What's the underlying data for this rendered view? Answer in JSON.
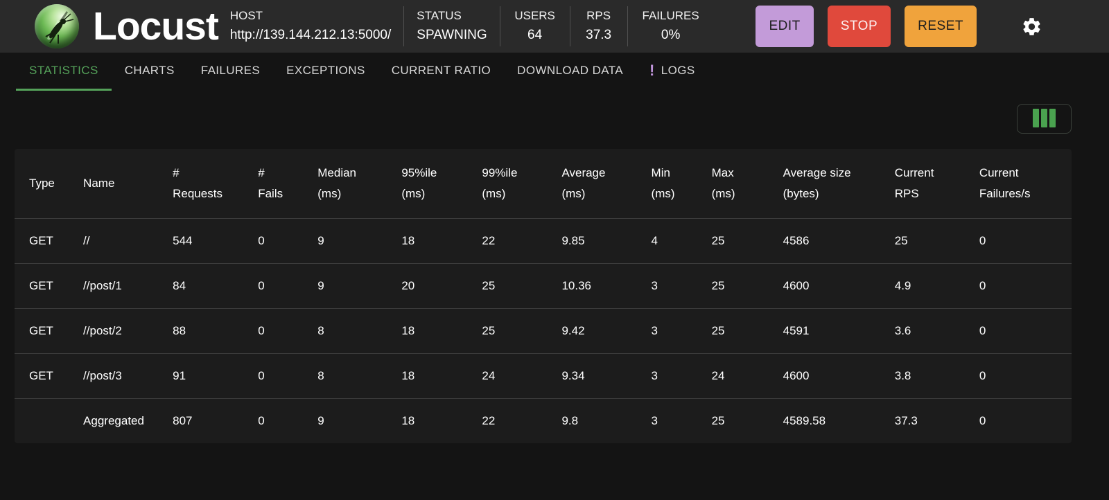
{
  "header": {
    "app_title": "Locust",
    "host": {
      "label": "HOST",
      "value": "http://139.144.212.13:5000/"
    },
    "stats": [
      {
        "label": "STATUS",
        "value": "SPAWNING"
      },
      {
        "label": "USERS",
        "value": "64"
      },
      {
        "label": "RPS",
        "value": "37.3"
      },
      {
        "label": "FAILURES",
        "value": "0%"
      }
    ],
    "buttons": [
      {
        "label": "EDIT"
      },
      {
        "label": "STOP"
      },
      {
        "label": "RESET"
      }
    ]
  },
  "tabs": [
    {
      "label": "STATISTICS",
      "active": true
    },
    {
      "label": "CHARTS"
    },
    {
      "label": "FAILURES"
    },
    {
      "label": "EXCEPTIONS"
    },
    {
      "label": "CURRENT RATIO"
    },
    {
      "label": "DOWNLOAD DATA"
    },
    {
      "label": "LOGS",
      "badge": "!"
    }
  ],
  "table": {
    "columns": [
      {
        "id": "type",
        "lines": [
          "Type"
        ]
      },
      {
        "id": "name",
        "lines": [
          "Name"
        ]
      },
      {
        "id": "requests",
        "lines": [
          "#",
          "Requests"
        ]
      },
      {
        "id": "fails",
        "lines": [
          "#",
          "Fails"
        ]
      },
      {
        "id": "median",
        "lines": [
          "Median",
          "(ms)"
        ]
      },
      {
        "id": "p95",
        "lines": [
          "95%ile",
          "(ms)"
        ]
      },
      {
        "id": "p99",
        "lines": [
          "99%ile",
          "(ms)"
        ]
      },
      {
        "id": "average",
        "lines": [
          "Average",
          "(ms)"
        ]
      },
      {
        "id": "min",
        "lines": [
          "Min",
          "(ms)"
        ]
      },
      {
        "id": "max",
        "lines": [
          "Max",
          "(ms)"
        ]
      },
      {
        "id": "avg-size",
        "lines": [
          "Average size",
          "(bytes)"
        ]
      },
      {
        "id": "current-rps",
        "lines": [
          "Current",
          "RPS"
        ]
      },
      {
        "id": "current-failures",
        "lines": [
          "Current",
          "Failures/s"
        ]
      }
    ],
    "rows": [
      [
        "GET",
        "//",
        "544",
        "0",
        "9",
        "18",
        "22",
        "9.85",
        "4",
        "25",
        "4586",
        "25",
        "0"
      ],
      [
        "GET",
        "//post/1",
        "84",
        "0",
        "9",
        "20",
        "25",
        "10.36",
        "3",
        "25",
        "4600",
        "4.9",
        "0"
      ],
      [
        "GET",
        "//post/2",
        "88",
        "0",
        "8",
        "18",
        "25",
        "9.42",
        "3",
        "25",
        "4591",
        "3.6",
        "0"
      ],
      [
        "GET",
        "//post/3",
        "91",
        "0",
        "8",
        "18",
        "24",
        "9.34",
        "3",
        "24",
        "4600",
        "3.8",
        "0"
      ]
    ],
    "aggregated_row": [
      "",
      "Aggregated",
      "807",
      "0",
      "9",
      "18",
      "22",
      "9.8",
      "3",
      "25",
      "4589.58",
      "37.3",
      "0"
    ]
  },
  "colors": {
    "accent_green": "#55a25a",
    "edit_purple": "#c39bd9",
    "stop_red": "#e0493c",
    "reset_orange": "#f0a33c",
    "badge_purple": "#bf94da",
    "header_bg": "#2a2a2a",
    "page_bg": "#141414",
    "table_bg": "#1c1c1c"
  }
}
